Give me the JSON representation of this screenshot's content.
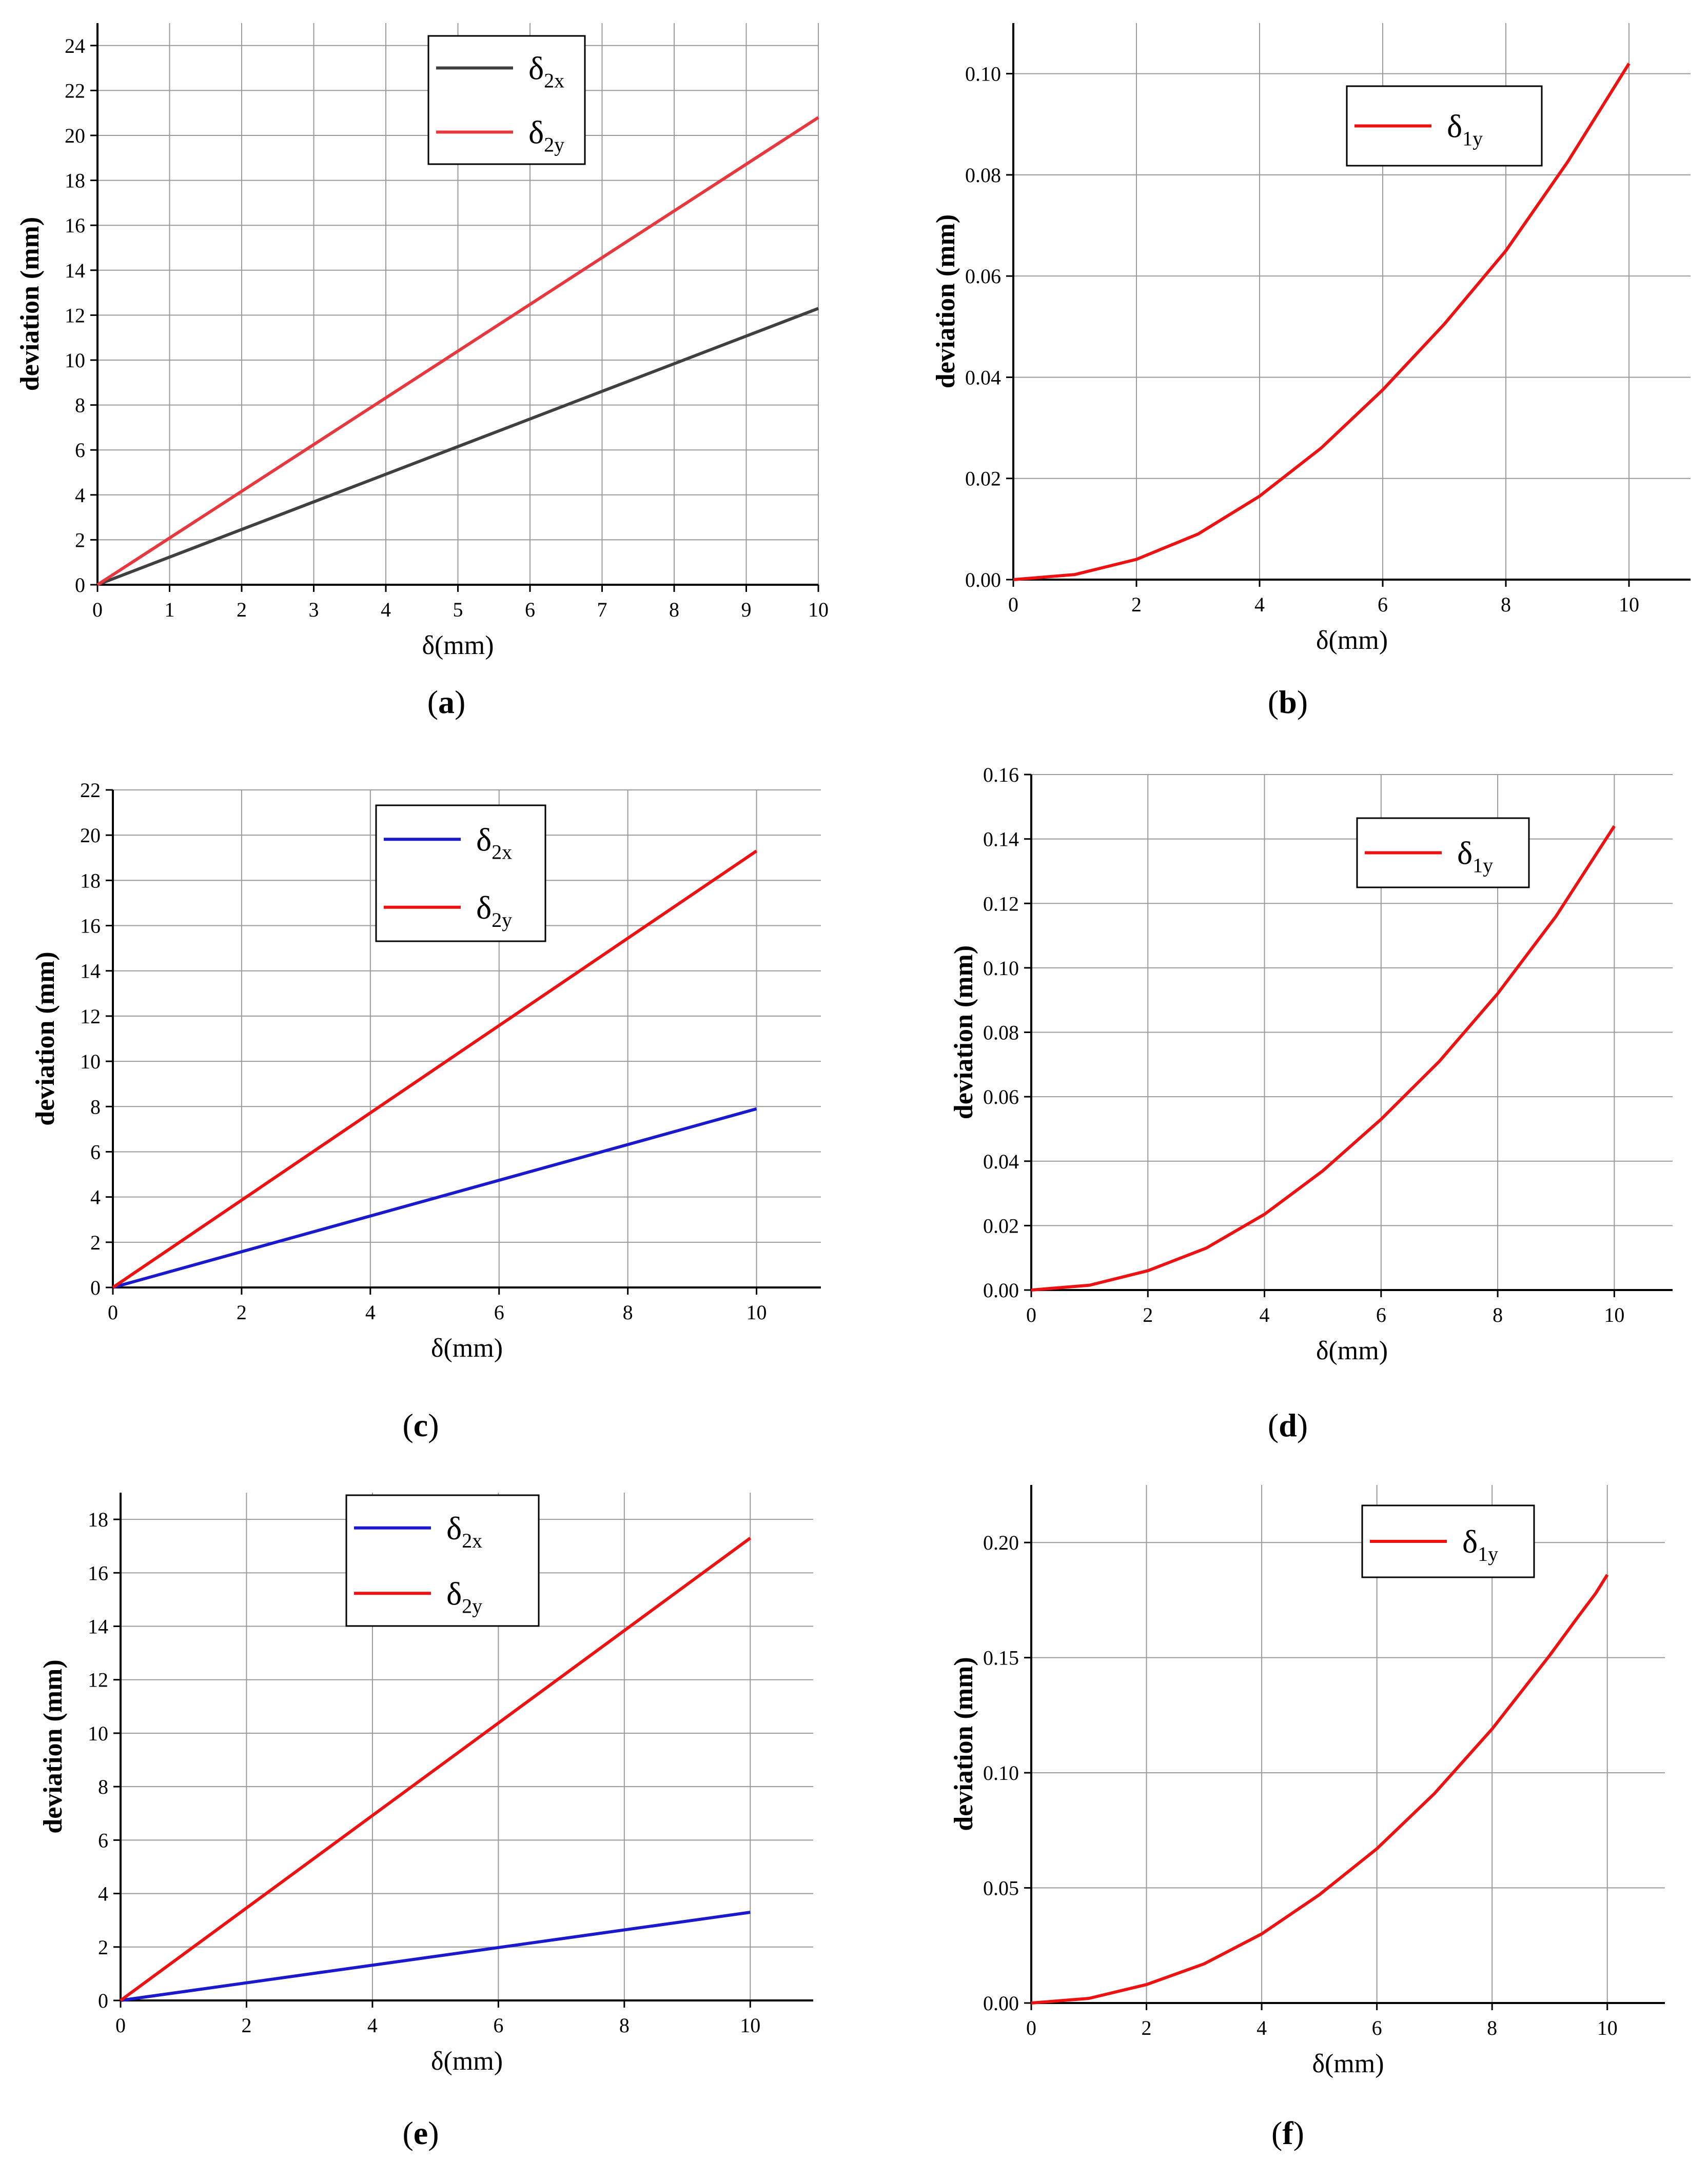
{
  "figure": {
    "panels": [
      {
        "caption": "a",
        "chart_data": {
          "type": "line",
          "xlabel": "δ(mm)",
          "ylabel": "deviation (mm)",
          "xlim": [
            0,
            10
          ],
          "ylim": [
            0,
            25
          ],
          "xticks": [
            "0",
            "1",
            "2",
            "3",
            "4",
            "5",
            "6",
            "7",
            "8",
            "9",
            "10"
          ],
          "yticks": [
            "0",
            "2",
            "4",
            "6",
            "8",
            "10",
            "12",
            "14",
            "16",
            "18",
            "20",
            "22",
            "24"
          ],
          "grid": true,
          "legend_position": "top-center",
          "series": [
            {
              "name": "δ2x",
              "legend_main": "δ",
              "legend_sub": "2x",
              "color": "#404040",
              "x": [
                0,
                10
              ],
              "y": [
                0,
                12.3
              ]
            },
            {
              "name": "δ2y",
              "legend_main": "δ",
              "legend_sub": "2y",
              "color": "#e8383d",
              "x": [
                0,
                10
              ],
              "y": [
                0,
                20.8
              ]
            }
          ]
        }
      },
      {
        "caption": "b",
        "chart_data": {
          "type": "line",
          "xlabel": "δ(mm)",
          "ylabel": "deviation (mm)",
          "xlim": [
            0,
            11
          ],
          "ylim": [
            0,
            0.11
          ],
          "xticks": [
            "0",
            "2",
            "4",
            "6",
            "8",
            "10"
          ],
          "yticks": [
            "0.00",
            "0.02",
            "0.04",
            "0.06",
            "0.08",
            "0.10"
          ],
          "grid": true,
          "legend_position": "top-right",
          "series": [
            {
              "name": "δ1y",
              "legend_main": "δ",
              "legend_sub": "1y",
              "color": "#ee1111",
              "x": [
                0,
                1,
                2,
                3,
                4,
                5,
                6,
                7,
                8,
                9,
                10
              ],
              "y": [
                0,
                0.001,
                0.004,
                0.009,
                0.0165,
                0.026,
                0.0375,
                0.0505,
                0.065,
                0.0825,
                0.102
              ]
            }
          ]
        }
      },
      {
        "caption": "c",
        "chart_data": {
          "type": "line",
          "xlabel": "δ(mm)",
          "ylabel": "deviation (mm)",
          "xlim": [
            0,
            11
          ],
          "ylim": [
            0,
            22
          ],
          "xticks": [
            "0",
            "2",
            "4",
            "6",
            "8",
            "10"
          ],
          "yticks": [
            "0",
            "2",
            "4",
            "6",
            "8",
            "10",
            "12",
            "14",
            "16",
            "18",
            "20",
            "22"
          ],
          "grid": true,
          "legend_position": "top-center",
          "series": [
            {
              "name": "δ2x",
              "legend_main": "δ",
              "legend_sub": "2x",
              "color": "#1a1acc",
              "x": [
                0,
                10
              ],
              "y": [
                0,
                7.9
              ]
            },
            {
              "name": "δ2y",
              "legend_main": "δ",
              "legend_sub": "2y",
              "color": "#ee1111",
              "x": [
                0,
                10
              ],
              "y": [
                0,
                19.3
              ]
            }
          ]
        }
      },
      {
        "caption": "d",
        "chart_data": {
          "type": "line",
          "xlabel": "δ(mm)",
          "ylabel": "deviation (mm)",
          "xlim": [
            0,
            11
          ],
          "ylim": [
            0,
            0.16
          ],
          "xticks": [
            "0",
            "2",
            "4",
            "6",
            "8",
            "10"
          ],
          "yticks": [
            "0.00",
            "0.02",
            "0.04",
            "0.06",
            "0.08",
            "0.10",
            "0.12",
            "0.14",
            "0.16"
          ],
          "grid": true,
          "legend_position": "top-right",
          "series": [
            {
              "name": "δ1y",
              "legend_main": "δ",
              "legend_sub": "1y",
              "color": "#ee1111",
              "x": [
                0,
                1,
                2,
                3,
                4,
                5,
                6,
                7,
                8,
                9,
                10
              ],
              "y": [
                0,
                0.0015,
                0.006,
                0.013,
                0.0235,
                0.037,
                0.053,
                0.071,
                0.092,
                0.116,
                0.144
              ]
            }
          ]
        }
      },
      {
        "caption": "e",
        "chart_data": {
          "type": "line",
          "xlabel": "δ(mm)",
          "ylabel": "deviation (mm)",
          "xlim": [
            0,
            11
          ],
          "ylim": [
            0,
            19
          ],
          "xticks": [
            "0",
            "2",
            "4",
            "6",
            "8",
            "10"
          ],
          "yticks": [
            "0",
            "2",
            "4",
            "6",
            "8",
            "10",
            "12",
            "14",
            "16",
            "18"
          ],
          "grid": true,
          "legend_position": "top-center",
          "series": [
            {
              "name": "δ2x",
              "legend_main": "δ",
              "legend_sub": "2x",
              "color": "#1a1acc",
              "x": [
                0,
                10
              ],
              "y": [
                0,
                3.3
              ]
            },
            {
              "name": "δ2y",
              "legend_main": "δ",
              "legend_sub": "2y",
              "color": "#ee1111",
              "x": [
                0,
                10
              ],
              "y": [
                0,
                17.3
              ]
            }
          ]
        }
      },
      {
        "caption": "f",
        "chart_data": {
          "type": "line",
          "xlabel": "δ(mm)",
          "ylabel": "deviation (mm)",
          "xlim": [
            0,
            11
          ],
          "ylim": [
            0,
            0.225
          ],
          "xticks": [
            "0",
            "2",
            "4",
            "6",
            "8",
            "10"
          ],
          "yticks": [
            "0.00",
            "0.05",
            "0.10",
            "0.15",
            "0.20"
          ],
          "grid": true,
          "legend_position": "top-right",
          "series": [
            {
              "name": "δ1y",
              "legend_main": "δ",
              "legend_sub": "1y",
              "color": "#ee1111",
              "x": [
                0,
                1,
                2,
                3,
                4,
                5,
                6,
                7,
                8,
                9,
                9.5,
                9.8,
                10
              ],
              "y": [
                0,
                0.002,
                0.008,
                0.017,
                0.03,
                0.047,
                0.067,
                0.091,
                0.119,
                0.151,
                0.168,
                0.178,
                0.186
              ]
            }
          ]
        }
      }
    ]
  }
}
